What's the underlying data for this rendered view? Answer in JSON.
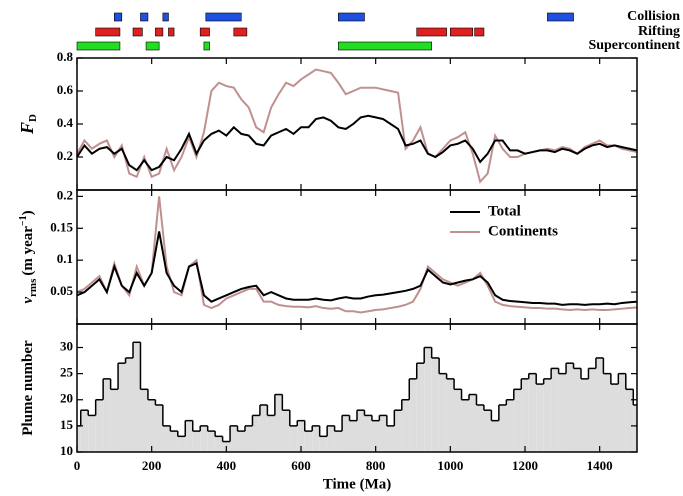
{
  "chart_data": [
    {
      "type": "interval",
      "xlim": [
        0,
        1500
      ],
      "categories": [
        "Collision",
        "Rifting",
        "Supercontinent"
      ],
      "colors": [
        "#2050e0",
        "#e02020",
        "#22dd22"
      ],
      "intervals": [
        [
          [
            100,
            120
          ],
          [
            170,
            190
          ],
          [
            230,
            245
          ],
          [
            345,
            440
          ],
          [
            700,
            770
          ],
          [
            1260,
            1330
          ]
        ],
        [
          [
            50,
            115
          ],
          [
            150,
            175
          ],
          [
            210,
            230
          ],
          [
            245,
            260
          ],
          [
            330,
            355
          ],
          [
            420,
            455
          ],
          [
            910,
            990
          ],
          [
            1000,
            1060
          ],
          [
            1065,
            1090
          ]
        ],
        [
          [
            0,
            115
          ],
          [
            185,
            220
          ],
          [
            340,
            355
          ],
          [
            700,
            950
          ]
        ]
      ]
    },
    {
      "type": "line",
      "xlim": [
        0,
        1500
      ],
      "ylim": [
        0,
        0.8
      ],
      "yticks": [
        0.2,
        0.4,
        0.6,
        0.8
      ],
      "ylabel": {
        "main": "F",
        "sub": "D"
      },
      "x": [
        0,
        20,
        40,
        60,
        80,
        100,
        120,
        140,
        160,
        180,
        200,
        220,
        240,
        260,
        280,
        300,
        320,
        340,
        360,
        380,
        400,
        420,
        440,
        460,
        480,
        500,
        520,
        540,
        560,
        580,
        600,
        620,
        640,
        660,
        680,
        700,
        720,
        740,
        760,
        780,
        800,
        820,
        840,
        860,
        880,
        900,
        920,
        940,
        960,
        980,
        1000,
        1020,
        1040,
        1060,
        1080,
        1100,
        1120,
        1140,
        1160,
        1180,
        1200,
        1220,
        1240,
        1260,
        1280,
        1300,
        1320,
        1340,
        1360,
        1380,
        1400,
        1420,
        1440,
        1460,
        1480,
        1500
      ],
      "series": [
        {
          "color": "#c09090",
          "values": [
            0.22,
            0.3,
            0.25,
            0.28,
            0.3,
            0.2,
            0.27,
            0.1,
            0.08,
            0.2,
            0.08,
            0.1,
            0.25,
            0.12,
            0.2,
            0.32,
            0.2,
            0.35,
            0.6,
            0.65,
            0.63,
            0.62,
            0.55,
            0.5,
            0.38,
            0.35,
            0.5,
            0.58,
            0.65,
            0.63,
            0.67,
            0.7,
            0.73,
            0.72,
            0.71,
            0.65,
            0.58,
            0.6,
            0.62,
            0.62,
            0.62,
            0.61,
            0.6,
            0.59,
            0.25,
            0.3,
            0.38,
            0.22,
            0.2,
            0.25,
            0.3,
            0.32,
            0.35,
            0.22,
            0.05,
            0.1,
            0.33,
            0.25,
            0.2,
            0.2,
            0.22,
            0.23,
            0.24,
            0.25,
            0.24,
            0.26,
            0.25,
            0.22,
            0.26,
            0.28,
            0.3,
            0.27,
            0.27,
            0.25,
            0.24,
            0.23
          ]
        },
        {
          "color": "#000000",
          "values": [
            0.2,
            0.27,
            0.22,
            0.25,
            0.26,
            0.22,
            0.25,
            0.15,
            0.12,
            0.18,
            0.12,
            0.14,
            0.2,
            0.18,
            0.25,
            0.34,
            0.22,
            0.3,
            0.34,
            0.36,
            0.33,
            0.38,
            0.34,
            0.33,
            0.28,
            0.27,
            0.33,
            0.35,
            0.37,
            0.34,
            0.38,
            0.38,
            0.43,
            0.44,
            0.42,
            0.38,
            0.37,
            0.4,
            0.44,
            0.45,
            0.44,
            0.43,
            0.4,
            0.37,
            0.27,
            0.28,
            0.3,
            0.22,
            0.2,
            0.23,
            0.27,
            0.28,
            0.3,
            0.25,
            0.17,
            0.22,
            0.3,
            0.3,
            0.24,
            0.24,
            0.22,
            0.23,
            0.24,
            0.24,
            0.23,
            0.25,
            0.24,
            0.22,
            0.25,
            0.27,
            0.28,
            0.26,
            0.27,
            0.26,
            0.25,
            0.24
          ]
        }
      ]
    },
    {
      "type": "line",
      "xlim": [
        0,
        1500
      ],
      "ylim": [
        0,
        0.21
      ],
      "yticks": [
        0.05,
        0.1,
        0.15,
        0.2
      ],
      "ylabel": {
        "main": "v",
        "sub": "rms",
        "rest": "(m year",
        "sup": "−1",
        "end": ")"
      },
      "legend": "upper right",
      "x": [
        0,
        20,
        40,
        60,
        80,
        100,
        120,
        140,
        160,
        180,
        200,
        220,
        240,
        260,
        280,
        300,
        320,
        340,
        360,
        380,
        400,
        420,
        440,
        460,
        480,
        500,
        520,
        540,
        560,
        580,
        600,
        620,
        640,
        660,
        680,
        700,
        720,
        740,
        760,
        780,
        800,
        820,
        840,
        860,
        880,
        900,
        920,
        940,
        960,
        980,
        1000,
        1020,
        1040,
        1060,
        1080,
        1100,
        1120,
        1140,
        1160,
        1180,
        1200,
        1220,
        1240,
        1260,
        1280,
        1300,
        1320,
        1340,
        1360,
        1380,
        1400,
        1420,
        1440,
        1460,
        1480,
        1500
      ],
      "series": [
        {
          "name": "Continents",
          "color": "#c09090",
          "values": [
            0.05,
            0.055,
            0.065,
            0.075,
            0.05,
            0.095,
            0.06,
            0.045,
            0.09,
            0.06,
            0.08,
            0.2,
            0.09,
            0.05,
            0.045,
            0.09,
            0.1,
            0.03,
            0.025,
            0.03,
            0.04,
            0.045,
            0.05,
            0.055,
            0.055,
            0.035,
            0.035,
            0.03,
            0.028,
            0.027,
            0.027,
            0.026,
            0.028,
            0.025,
            0.024,
            0.025,
            0.02,
            0.02,
            0.018,
            0.02,
            0.022,
            0.023,
            0.025,
            0.027,
            0.03,
            0.035,
            0.055,
            0.09,
            0.08,
            0.07,
            0.065,
            0.06,
            0.065,
            0.07,
            0.08,
            0.06,
            0.035,
            0.03,
            0.028,
            0.027,
            0.026,
            0.025,
            0.025,
            0.024,
            0.024,
            0.023,
            0.022,
            0.023,
            0.022,
            0.023,
            0.022,
            0.022,
            0.023,
            0.024,
            0.025,
            0.026
          ]
        },
        {
          "name": "Total",
          "color": "#000000",
          "values": [
            0.045,
            0.05,
            0.06,
            0.07,
            0.05,
            0.09,
            0.06,
            0.05,
            0.08,
            0.06,
            0.08,
            0.145,
            0.08,
            0.06,
            0.05,
            0.09,
            0.095,
            0.045,
            0.035,
            0.04,
            0.045,
            0.05,
            0.055,
            0.058,
            0.06,
            0.045,
            0.05,
            0.045,
            0.04,
            0.038,
            0.038,
            0.038,
            0.04,
            0.038,
            0.037,
            0.04,
            0.042,
            0.04,
            0.04,
            0.043,
            0.045,
            0.046,
            0.048,
            0.05,
            0.052,
            0.055,
            0.06,
            0.085,
            0.075,
            0.065,
            0.062,
            0.065,
            0.068,
            0.07,
            0.075,
            0.065,
            0.045,
            0.038,
            0.036,
            0.035,
            0.034,
            0.033,
            0.033,
            0.032,
            0.032,
            0.03,
            0.031,
            0.031,
            0.03,
            0.031,
            0.031,
            0.032,
            0.031,
            0.033,
            0.034,
            0.035
          ]
        }
      ]
    },
    {
      "type": "step",
      "xlim": [
        0,
        1500
      ],
      "ylim": [
        10,
        34.5
      ],
      "yticks": [
        10,
        15,
        20,
        25,
        30
      ],
      "xticks": [
        0,
        200,
        400,
        600,
        800,
        1000,
        1200,
        1400
      ],
      "ylabel": {
        "main": "Plume number"
      },
      "xlabel": "Time (Ma)",
      "color": "#dddddd",
      "x": [
        0,
        20,
        40,
        60,
        80,
        100,
        120,
        140,
        160,
        180,
        200,
        220,
        240,
        260,
        280,
        300,
        320,
        340,
        360,
        380,
        400,
        420,
        440,
        460,
        480,
        500,
        520,
        540,
        560,
        580,
        600,
        620,
        640,
        660,
        680,
        700,
        720,
        740,
        760,
        780,
        800,
        820,
        840,
        860,
        880,
        900,
        920,
        940,
        960,
        980,
        1000,
        1020,
        1040,
        1060,
        1080,
        1100,
        1120,
        1140,
        1160,
        1180,
        1200,
        1220,
        1240,
        1260,
        1280,
        1300,
        1320,
        1340,
        1360,
        1380,
        1400,
        1420,
        1440,
        1460,
        1480,
        1500
      ],
      "values": [
        15,
        18,
        17,
        20,
        24,
        22,
        27,
        28,
        31,
        22,
        20,
        19,
        15,
        14,
        13,
        16,
        14,
        15,
        14,
        13,
        12,
        15,
        14,
        15,
        17,
        19,
        17,
        21,
        18,
        15,
        16,
        14,
        15,
        13,
        15,
        14,
        17,
        16,
        18,
        17,
        16,
        17,
        15,
        18,
        20,
        24,
        27,
        30,
        28,
        25,
        24,
        22,
        20,
        21,
        19,
        18,
        16,
        19,
        20,
        22,
        24,
        25,
        23,
        24,
        26,
        25,
        27,
        26,
        24,
        26,
        28,
        25,
        23,
        25,
        22,
        19
      ]
    }
  ]
}
